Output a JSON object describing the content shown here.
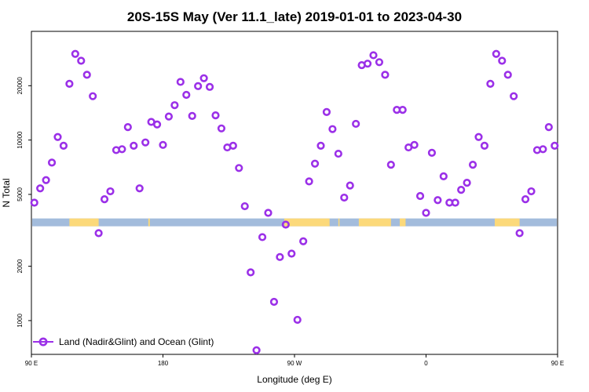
{
  "chart_data": {
    "type": "scatter",
    "title": "20S-15S May (Ver 11.1_late)   2019-01-01 to 2023-04-30",
    "xlabel": "Longitude (deg E)",
    "ylabel": "N Total",
    "y_scale": "log",
    "xlim": [
      90,
      450
    ],
    "ylim": [
      650,
      40000
    ],
    "x_ticks": [
      {
        "value": 90,
        "label": "90 E"
      },
      {
        "value": 180,
        "label": "180"
      },
      {
        "value": 270,
        "label": "90 W"
      },
      {
        "value": 360,
        "label": "0"
      },
      {
        "value": 450,
        "label": "90 E"
      }
    ],
    "x_tick_extra": [],
    "y_ticks": [
      {
        "value": 1000,
        "label": "1000"
      },
      {
        "value": 2000,
        "label": "2000"
      },
      {
        "value": 5000,
        "label": "5000"
      },
      {
        "value": 10000,
        "label": "10000"
      },
      {
        "value": 20000,
        "label": "20000"
      }
    ],
    "surface_strip": {
      "level": 3500,
      "ocean_color": "#a3bcdc",
      "land_color": "#fcd97a",
      "land_ranges": [
        [
          116,
          136
        ],
        [
          170,
          171
        ],
        [
          263,
          294
        ],
        [
          300,
          300
        ],
        [
          314,
          336
        ],
        [
          342,
          346
        ],
        [
          407,
          424
        ]
      ]
    },
    "legend": {
      "label": "Land (Nadir&Glint) and Ocean (Glint)",
      "position": "bottom-left"
    },
    "series": [
      {
        "name": "Land (Nadir&Glint) and Ocean (Glint)",
        "color": "#9b30e8",
        "points": [
          [
            92,
            4500
          ],
          [
            96,
            5400
          ],
          [
            100,
            6000
          ],
          [
            104,
            7500
          ],
          [
            108,
            10400
          ],
          [
            112,
            9300
          ],
          [
            116,
            20500
          ],
          [
            120,
            30000
          ],
          [
            124,
            27500
          ],
          [
            128,
            23000
          ],
          [
            132,
            17500
          ],
          [
            136,
            3050
          ],
          [
            140,
            4700
          ],
          [
            144,
            5200
          ],
          [
            148,
            8800
          ],
          [
            152,
            8900
          ],
          [
            156,
            11800
          ],
          [
            160,
            9300
          ],
          [
            164,
            5400
          ],
          [
            168,
            9700
          ],
          [
            172,
            12600
          ],
          [
            176,
            12200
          ],
          [
            180,
            9400
          ],
          [
            184,
            13500
          ],
          [
            188,
            15600
          ],
          [
            192,
            21000
          ],
          [
            196,
            17800
          ],
          [
            200,
            13600
          ],
          [
            204,
            19900
          ],
          [
            208,
            22000
          ],
          [
            212,
            19700
          ],
          [
            216,
            13700
          ],
          [
            220,
            11600
          ],
          [
            224,
            9100
          ],
          [
            228,
            9300
          ],
          [
            232,
            7000
          ],
          [
            236,
            4300
          ],
          [
            240,
            1850
          ],
          [
            244,
            685
          ],
          [
            248,
            2900
          ],
          [
            252,
            3950
          ],
          [
            256,
            1270
          ],
          [
            260,
            2250
          ],
          [
            264,
            3400
          ],
          [
            268,
            2350
          ],
          [
            272,
            1010
          ],
          [
            276,
            2750
          ],
          [
            280,
            5900
          ],
          [
            284,
            7400
          ],
          [
            288,
            9300
          ],
          [
            292,
            14300
          ],
          [
            296,
            11500
          ],
          [
            300,
            8400
          ],
          [
            304,
            4800
          ],
          [
            308,
            5600
          ],
          [
            312,
            12300
          ],
          [
            316,
            26000
          ],
          [
            320,
            26500
          ],
          [
            324,
            29500
          ],
          [
            328,
            27000
          ],
          [
            332,
            23000
          ],
          [
            336,
            7300
          ],
          [
            340,
            14700
          ],
          [
            344,
            14700
          ],
          [
            348,
            9100
          ],
          [
            352,
            9400
          ],
          [
            356,
            4900
          ],
          [
            360,
            3950
          ],
          [
            364,
            8500
          ],
          [
            368,
            4650
          ],
          [
            372,
            6300
          ],
          [
            376,
            4500
          ],
          [
            380,
            4500
          ],
          [
            384,
            5300
          ],
          [
            388,
            5800
          ],
          [
            392,
            7300
          ],
          [
            396,
            10400
          ],
          [
            400,
            9300
          ],
          [
            404,
            20500
          ],
          [
            408,
            30000
          ],
          [
            412,
            27500
          ],
          [
            416,
            23000
          ],
          [
            420,
            17500
          ],
          [
            424,
            3050
          ],
          [
            428,
            4700
          ],
          [
            432,
            5200
          ],
          [
            436,
            8800
          ],
          [
            440,
            8900
          ],
          [
            444,
            11800
          ],
          [
            448,
            9300
          ]
        ]
      }
    ]
  }
}
